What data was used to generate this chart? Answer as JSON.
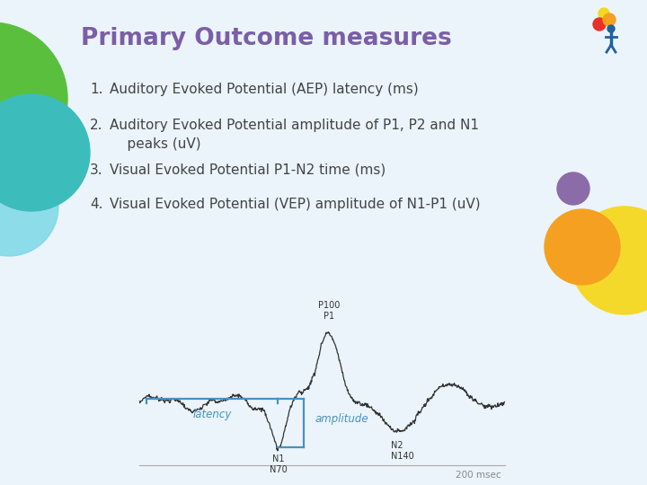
{
  "title": "Primary Outcome measures",
  "title_color": "#7B5EA7",
  "title_fontsize": 19,
  "bg_color": "#EAF4FA",
  "items": [
    "Auditory Evoked Potential (AEP) latency (ms)",
    "Auditory Evoked Potential amplitude of P1, P2 and N1\n    peaks (uV)",
    "Visual Evoked Potential P1-N2 time (ms)",
    "Visual Evoked Potential (VEP) amplitude of N1-P1 (uV)"
  ],
  "item_color": "#444444",
  "item_fontsize": 11,
  "waveform_color": "#333333",
  "bracket_color": "#4A90C0",
  "label_color": "#4A90C0",
  "annotation_color": "#333333",
  "p100_label": "P100\nP1",
  "n1_label": "N1\nN70",
  "n2_label": "N2\nN140",
  "latency_label": "latency",
  "amplitude_label": "amplitude",
  "msec_label": "200 msec",
  "green_circle_color": "#5BBF3E",
  "teal_circle_color": "#3DBCBC",
  "blue_circle_color": "#7DD8E8",
  "purple_circle_color": "#8B6BA8",
  "orange_circle_color": "#F5A020",
  "yellow_circle_color": "#F5D820"
}
